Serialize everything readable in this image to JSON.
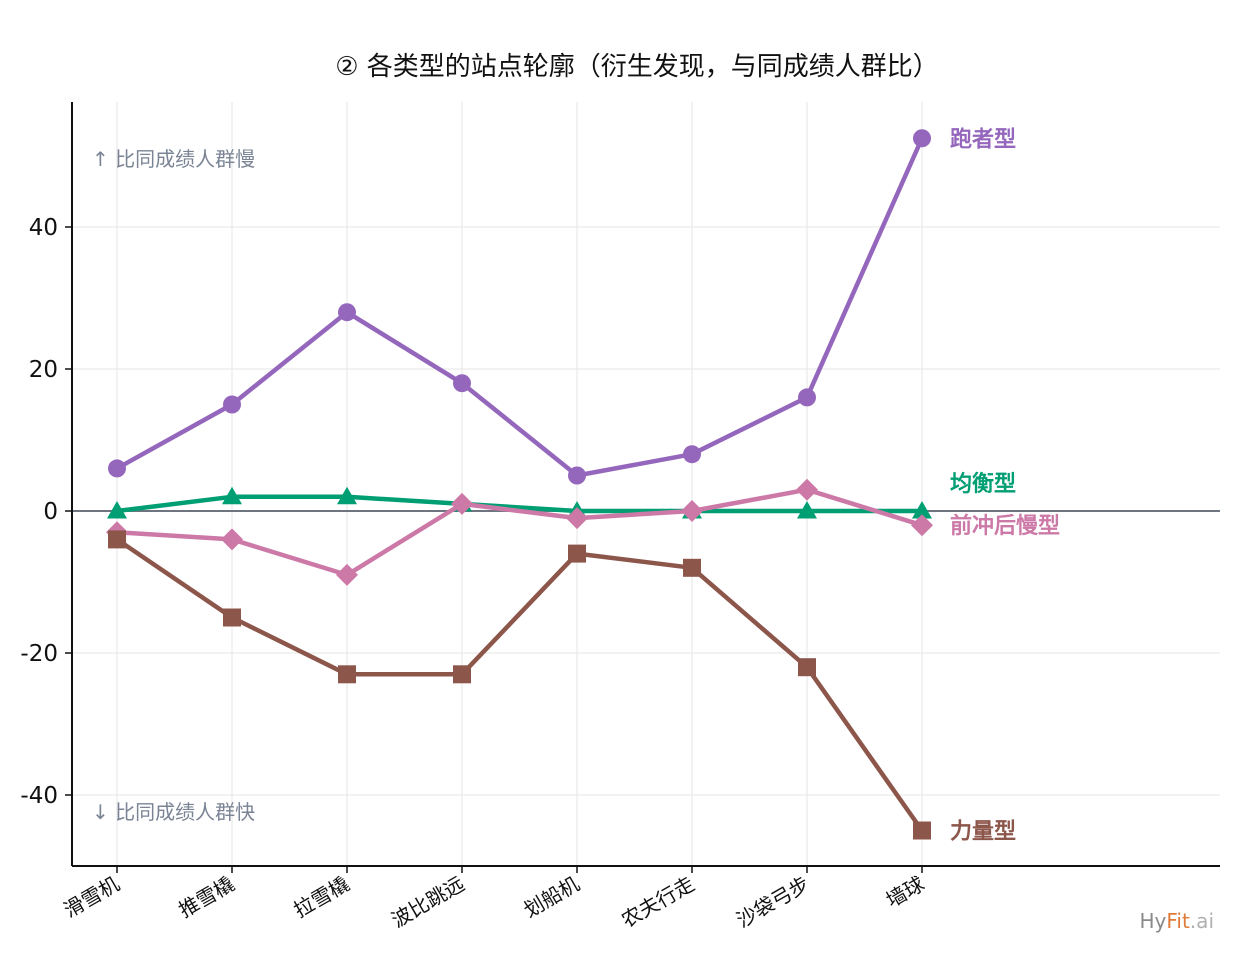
{
  "chart_data": {
    "type": "line",
    "title": "② 各类型的站点轮廓（衍生发现，与同成绩人群比）",
    "ylabel": "",
    "xlabel": "",
    "categories": [
      "滑雪机",
      "推雪橇",
      "拉雪橇",
      "波比跳远",
      "划船机",
      "农夫行走",
      "沙袋弓步",
      "墙球"
    ],
    "ylim": [
      -50,
      58
    ],
    "yticks": [
      -40,
      -20,
      0,
      20,
      40
    ],
    "grid": true,
    "zero_line": true,
    "series": [
      {
        "name": "跑者型",
        "values": [
          6,
          15,
          28,
          18,
          5,
          8,
          16,
          52.5
        ],
        "color": "#9467bd",
        "marker": "circle"
      },
      {
        "name": "均衡型",
        "values": [
          0,
          2,
          2,
          1,
          0,
          0,
          0,
          0
        ],
        "color": "#009e73",
        "marker": "triangle"
      },
      {
        "name": "前冲后慢型",
        "values": [
          -3,
          -4,
          -9,
          1,
          -1,
          0,
          3,
          -2
        ],
        "color": "#cc79a7",
        "marker": "diamond"
      },
      {
        "name": "力量型",
        "values": [
          -4,
          -15,
          -23,
          -23,
          -6,
          -8,
          -22,
          -45
        ],
        "color": "#8c564b",
        "marker": "square"
      }
    ],
    "annotations": {
      "top": "↑ 比同成绩人群慢",
      "bottom": "↓ 比同成绩人群快"
    }
  },
  "watermark": {
    "part1": "Hy",
    "part2": "Fit",
    "part3": ".ai",
    "color1": "#8a8a8a",
    "color2": "#e07b39",
    "color3": "#b0b0b0"
  }
}
